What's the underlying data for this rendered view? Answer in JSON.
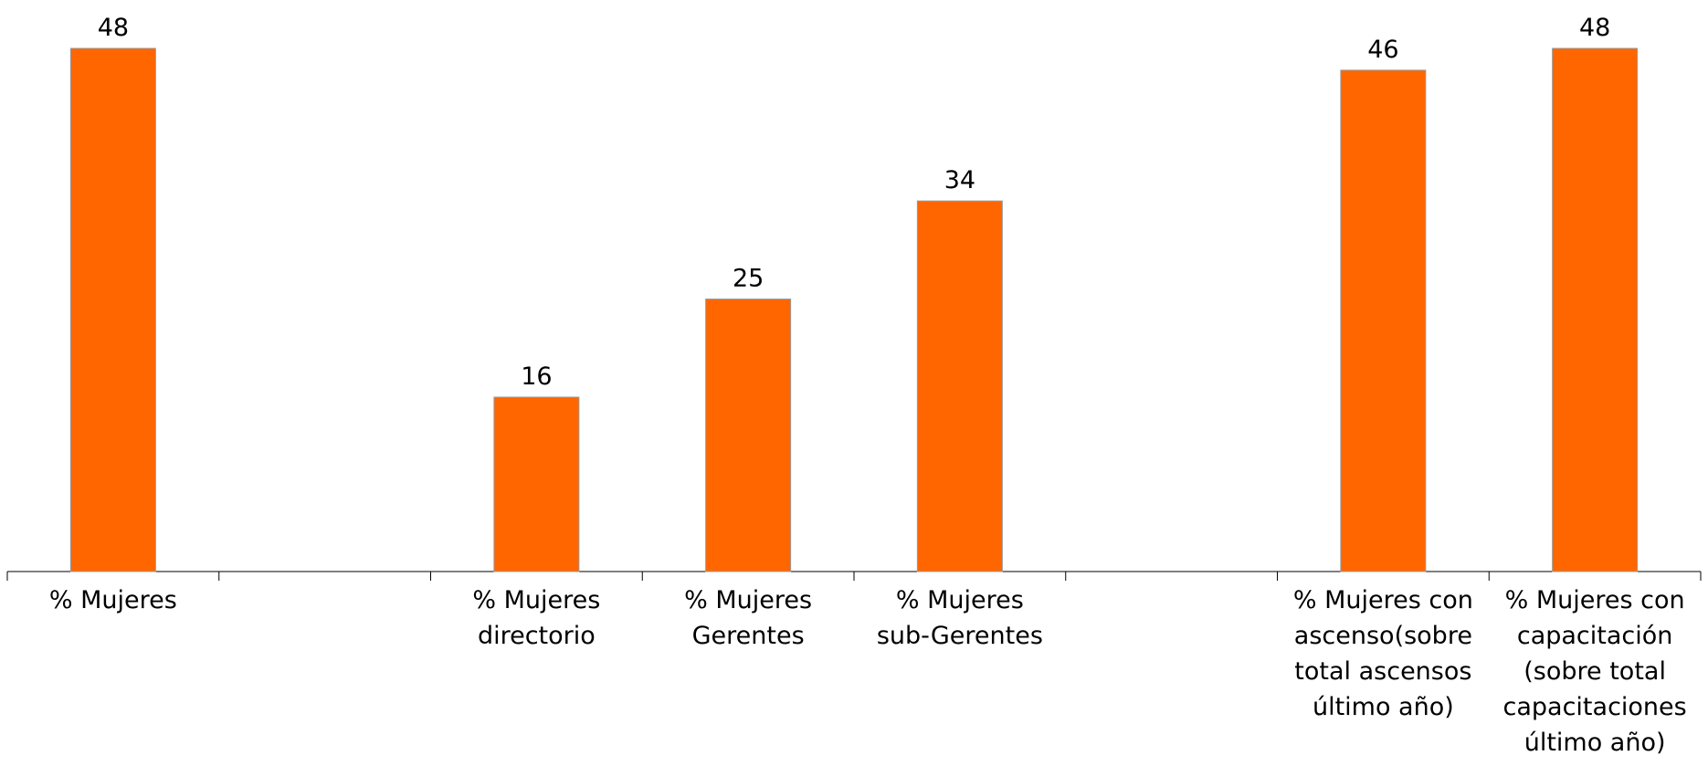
{
  "chart_data": {
    "type": "bar",
    "categories": [
      "% Mujeres",
      null,
      "% Mujeres directorio",
      "% Mujeres Gerentes",
      "% Mujeres sub-Gerentes",
      null,
      "% Mujeres con ascenso(sobre total ascensos último año)",
      "% Mujeres con capacitación (sobre total capacitaciones último año)"
    ],
    "values": [
      48,
      null,
      16,
      25,
      34,
      null,
      46,
      48
    ],
    "color": "#ff6600"
  }
}
